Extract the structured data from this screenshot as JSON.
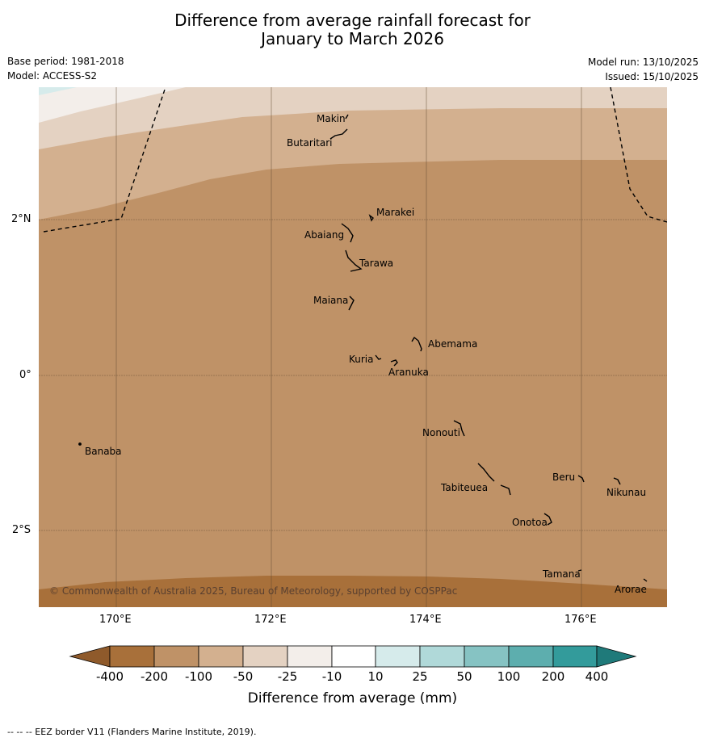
{
  "title": {
    "line1": "Difference from average rainfall forecast for",
    "line2": "January to March 2026"
  },
  "meta": {
    "base_period": "Base period: 1981-2018",
    "model": "Model: ACCESS-S2",
    "model_run": "Model run: 13/10/2025",
    "issued": "Issued: 15/10/2025"
  },
  "axes": {
    "lat_ticks": [
      "2°N",
      "0°",
      "2°S"
    ],
    "lon_ticks": [
      "170°E",
      "172°E",
      "174°E",
      "176°E"
    ]
  },
  "places": {
    "makin": "Makin",
    "butaritari": "Butaritari",
    "marakei": "Marakei",
    "abaiang": "Abaiang",
    "tarawa": "Tarawa",
    "maiana": "Maiana",
    "abemama": "Abemama",
    "kuria": "Kuria",
    "aranuka": "Aranuka",
    "nonouti": "Nonouti",
    "banaba": "Banaba",
    "beru": "Beru",
    "nikunau": "Nikunau",
    "tabiteuea": "Tabiteuea",
    "onotoa": "Onotoa",
    "tamana": "Tamana",
    "arorae": "Arorae"
  },
  "copyright": "© Commonwealth of Australia 2025, Bureau of Meteorology, supported by COSPPac",
  "colorbar": {
    "ticks": [
      "-400",
      "-200",
      "-100",
      "-50",
      "-25",
      "-10",
      "10",
      "25",
      "50",
      "100",
      "200",
      "400"
    ],
    "colors": [
      "#a8703a",
      "#bf9267",
      "#d3b08f",
      "#e4d2c2",
      "#f3eeea",
      "#ffffff",
      "#d6ebeb",
      "#b0d9d9",
      "#86c3c3",
      "#5daeae",
      "#339b9b"
    ],
    "under_color": "#8f5a2b",
    "over_color": "#1f7a7a",
    "label": "Difference from average (mm)"
  },
  "footer": "-- -- -- EEZ border V11 (Flanders Marine Institute, 2019)."
}
